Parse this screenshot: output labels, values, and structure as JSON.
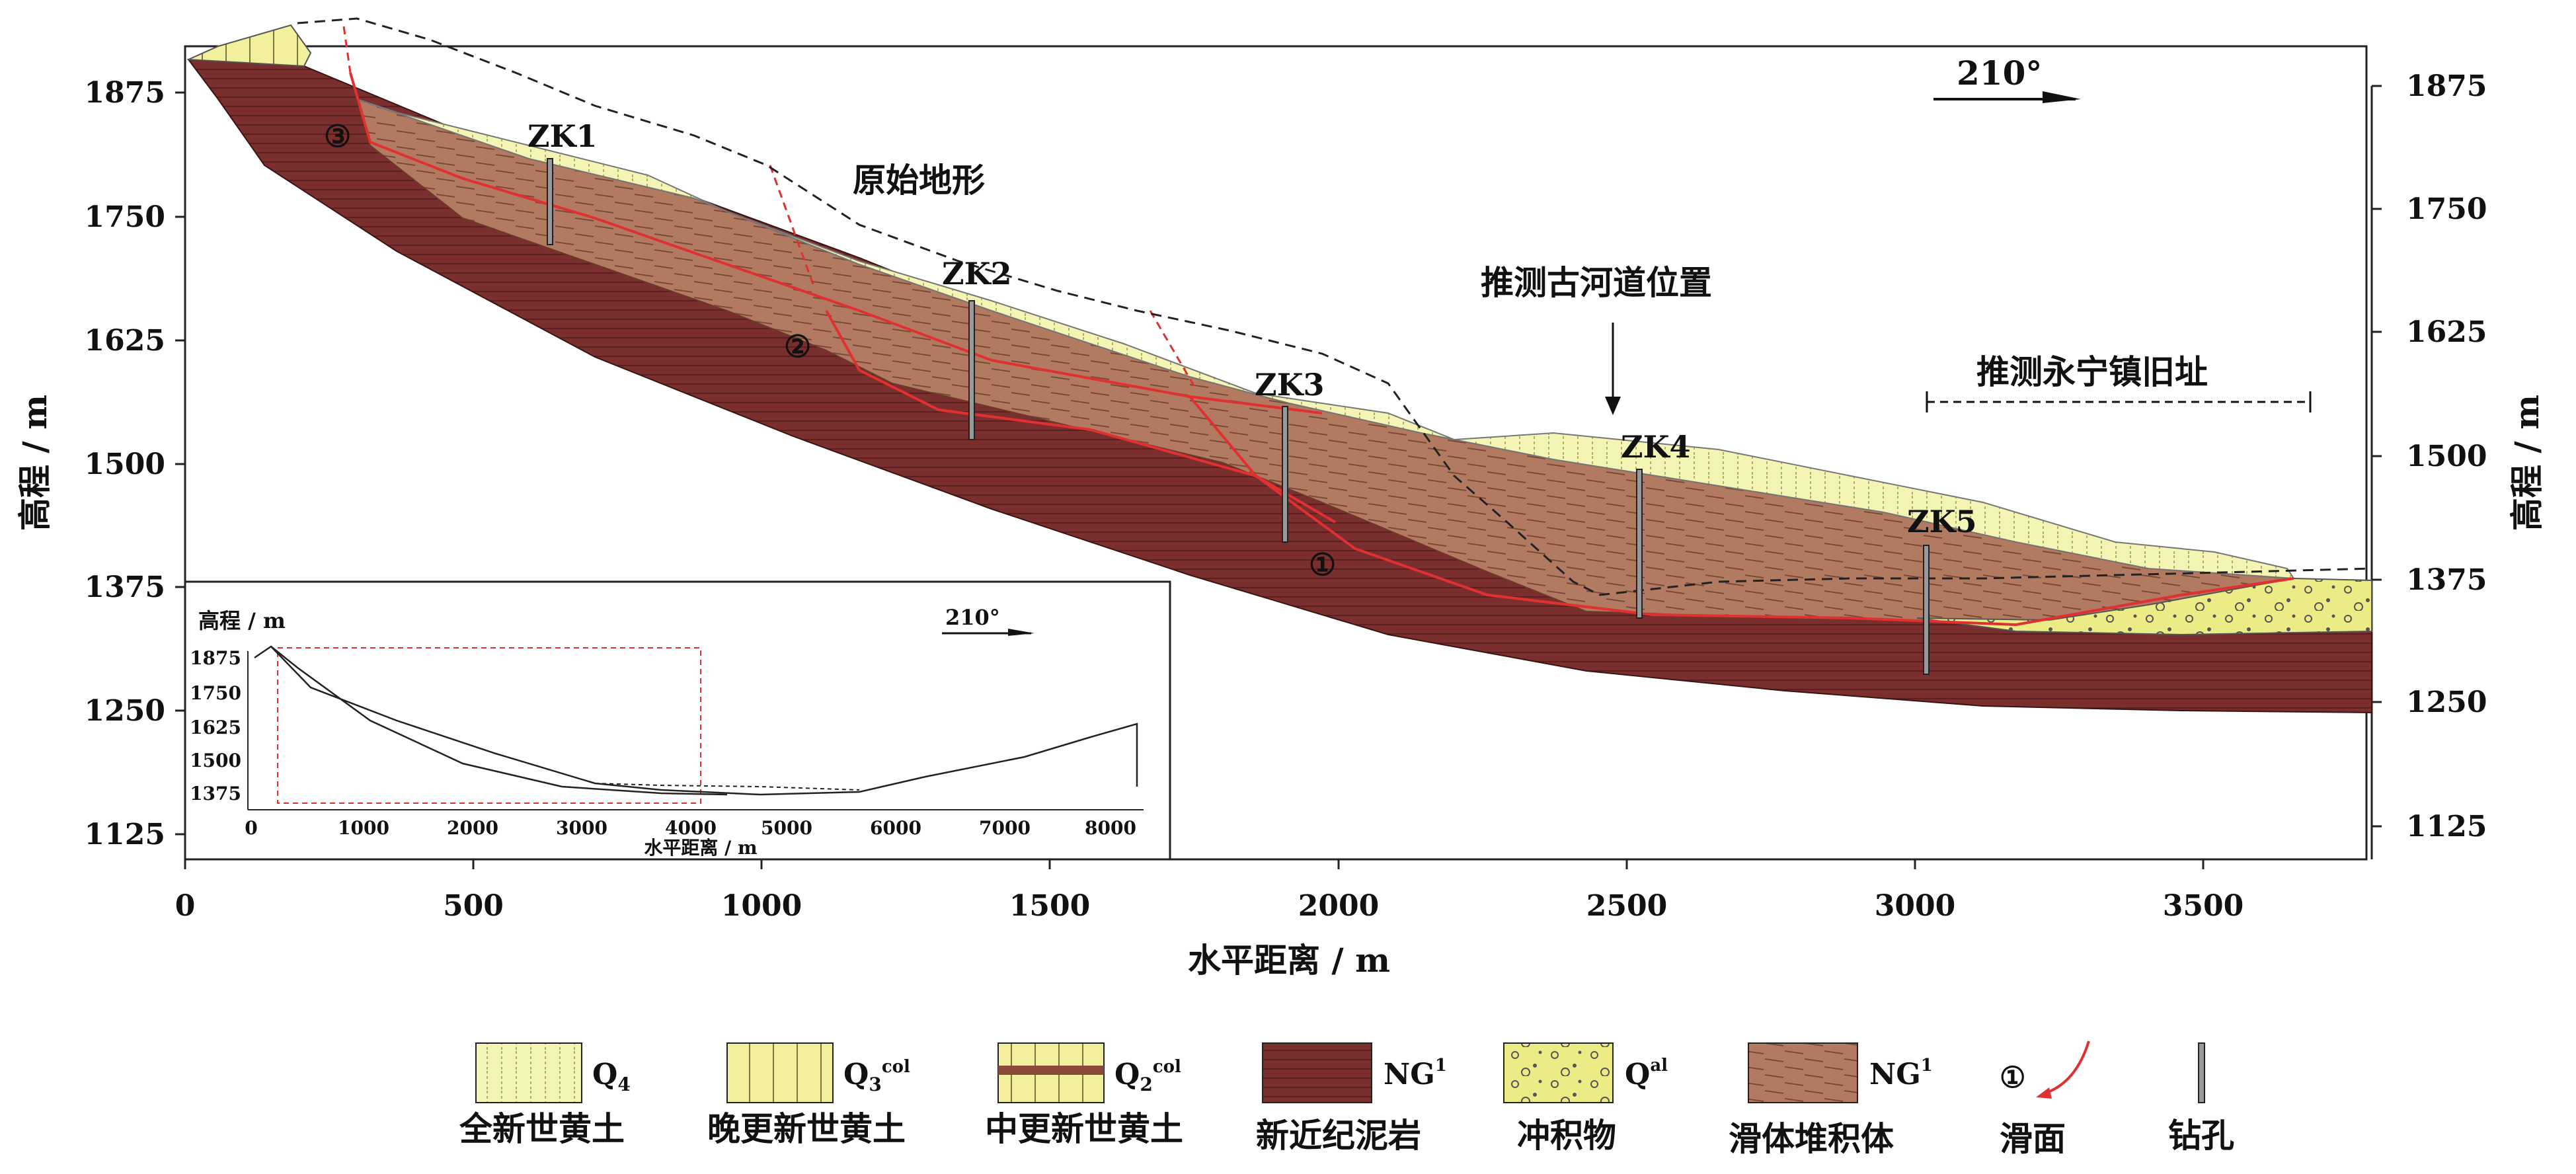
{
  "axes": {
    "x_label": "水平距离 / m",
    "y_label_left": "高程 / m",
    "y_label_right": "高程 / m",
    "x_ticks": [
      "0",
      "500",
      "1000",
      "1500",
      "2000",
      "2500",
      "3000",
      "3500"
    ],
    "y_ticks": [
      "1875",
      "1750",
      "1625",
      "1500",
      "1375",
      "1250",
      "1125"
    ]
  },
  "direction": {
    "label": "210°"
  },
  "annotations": {
    "original_terrain": "原始地形",
    "paleo_river": "推测古河道位置",
    "old_town": "推测永宁镇旧址"
  },
  "boreholes": [
    "ZK1",
    "ZK2",
    "ZK3",
    "ZK4",
    "ZK5"
  ],
  "slip_surfaces": [
    "③",
    "②",
    "①"
  ],
  "inset": {
    "y_label": "高程 / m",
    "x_label": "水平距离 / m",
    "direction": "210°",
    "y_ticks": [
      "1875",
      "1750",
      "1625",
      "1500",
      "1375"
    ],
    "x_ticks": [
      "0",
      "1000",
      "2000",
      "3000",
      "4000",
      "5000",
      "6000",
      "7000",
      "8000"
    ]
  },
  "legend": [
    {
      "symbol": "Q",
      "sub": "4",
      "sup": "",
      "name": "全新世黄土"
    },
    {
      "symbol": "Q",
      "sub": "3",
      "sup": "col",
      "name": "晚更新世黄土"
    },
    {
      "symbol": "Q",
      "sub": "2",
      "sup": "col",
      "name": "中更新世黄土"
    },
    {
      "symbol": "NG",
      "sub": "",
      "sup": "1",
      "name": "新近纪泥岩"
    },
    {
      "symbol": "Q",
      "sub": "",
      "sup": "al",
      "name": "冲积物"
    },
    {
      "symbol": "NG",
      "sub": "",
      "sup": "1",
      "name": "滑体堆积体"
    },
    {
      "symbol": "①",
      "sub": "",
      "sup": "",
      "name": "滑面"
    },
    {
      "symbol": "",
      "sub": "",
      "sup": "",
      "name": "钻孔"
    }
  ],
  "colors": {
    "mudstone": "#7a2e2e",
    "slide_mass": "#b27a60",
    "loess_q4": "#f4f4b4",
    "loess_q3": "#f2f09c",
    "alluvium": "#ecec86",
    "slip_line": "#e03030"
  }
}
